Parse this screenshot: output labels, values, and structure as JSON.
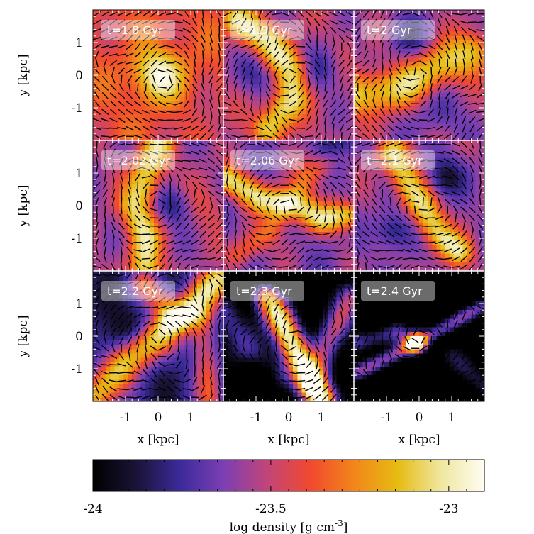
{
  "chart_data": {
    "type": "heatmap",
    "grid": {
      "rows": 3,
      "cols": 3
    },
    "xlabel": "x [kpc]",
    "ylabel": "y [kpc]",
    "xlim": [
      -2,
      2
    ],
    "ylim": [
      -2,
      2
    ],
    "x_ticks": [
      -1,
      0,
      1
    ],
    "y_ticks": [
      1,
      0,
      -1
    ],
    "time_unit": "Gyr",
    "panels": [
      {
        "label": "t=1.8 Gyr",
        "time": 1.8,
        "pattern": "core"
      },
      {
        "label": "t=1.9 Gyr",
        "time": 1.9,
        "pattern": "swirl"
      },
      {
        "label": "t=2 Gyr",
        "time": 2.0,
        "pattern": "bar"
      },
      {
        "label": "t=2.02 Gyr",
        "time": 2.02,
        "pattern": "vertical"
      },
      {
        "label": "t=2.06 Gyr",
        "time": 2.06,
        "pattern": "spiral"
      },
      {
        "label": "t=2.1 Gyr",
        "time": 2.1,
        "pattern": "s-shape"
      },
      {
        "label": "t=2.2 Gyr",
        "time": 2.2,
        "pattern": "diagonal-arc"
      },
      {
        "label": "t=2.3 Gyr",
        "time": 2.3,
        "pattern": "tilted-bar"
      },
      {
        "label": "t=2.4 Gyr",
        "time": 2.4,
        "pattern": "compact-core"
      }
    ],
    "colorbar": {
      "label_main": "log density [g cm",
      "label_sup": "-3",
      "label_end": "]",
      "min": -24,
      "max": -22.9,
      "ticks": [
        -24,
        -23.5,
        -23
      ],
      "tick_labels": [
        "-24",
        "-23.5",
        "-23"
      ],
      "stops": [
        "#000000",
        "#1a1336",
        "#3b2a9a",
        "#7b3fb4",
        "#c1457a",
        "#f1492f",
        "#f2861a",
        "#e6bb12",
        "#efe7a0",
        "#fffcf2"
      ]
    },
    "grid_lines": "on"
  }
}
